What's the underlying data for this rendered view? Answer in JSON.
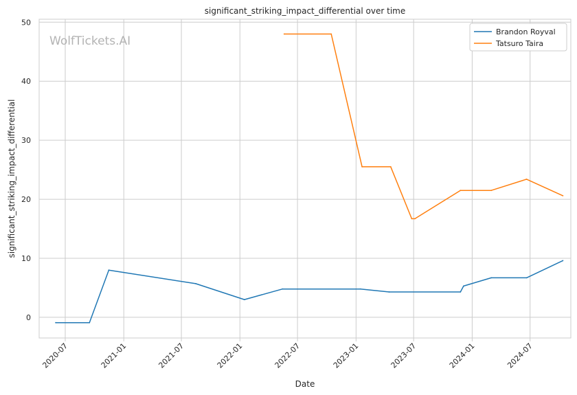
{
  "chart_data": {
    "type": "line",
    "title": "significant_striking_impact_differential over time",
    "xlabel": "Date",
    "ylabel": "significant_striking_impact_differential",
    "watermark": "WolfTickets.AI",
    "xlim": [
      "2020-04-10",
      "2024-11-06"
    ],
    "ylim": [
      -3.5,
      50.5
    ],
    "x_ticks": [
      "2020-07",
      "2021-01",
      "2021-07",
      "2022-01",
      "2022-07",
      "2023-01",
      "2023-07",
      "2024-01",
      "2024-07"
    ],
    "y_ticks": [
      0,
      10,
      20,
      30,
      40,
      50
    ],
    "grid": true,
    "legend_position": "top-right",
    "series": [
      {
        "name": "Brandon Royval",
        "color": "#1f77b4",
        "points": [
          [
            "2020-06-01",
            -0.9
          ],
          [
            "2020-09-15",
            -0.9
          ],
          [
            "2020-11-15",
            8.0
          ],
          [
            "2021-08-15",
            5.7
          ],
          [
            "2022-01-15",
            3.0
          ],
          [
            "2022-05-15",
            4.8
          ],
          [
            "2023-01-15",
            4.8
          ],
          [
            "2023-04-15",
            4.3
          ],
          [
            "2023-11-25",
            4.3
          ],
          [
            "2023-12-05",
            5.3
          ],
          [
            "2024-03-01",
            6.7
          ],
          [
            "2024-06-20",
            6.7
          ],
          [
            "2024-10-12",
            9.6
          ]
        ]
      },
      {
        "name": "Tatsuro Taira",
        "color": "#ff7f0e",
        "points": [
          [
            "2022-05-20",
            48.0
          ],
          [
            "2022-10-15",
            48.0
          ],
          [
            "2023-01-20",
            25.5
          ],
          [
            "2023-04-20",
            25.5
          ],
          [
            "2023-06-25",
            16.7
          ],
          [
            "2023-07-05",
            16.7
          ],
          [
            "2023-11-25",
            21.5
          ],
          [
            "2024-03-01",
            21.5
          ],
          [
            "2024-06-20",
            23.4
          ],
          [
            "2024-10-12",
            20.6
          ]
        ]
      }
    ]
  }
}
